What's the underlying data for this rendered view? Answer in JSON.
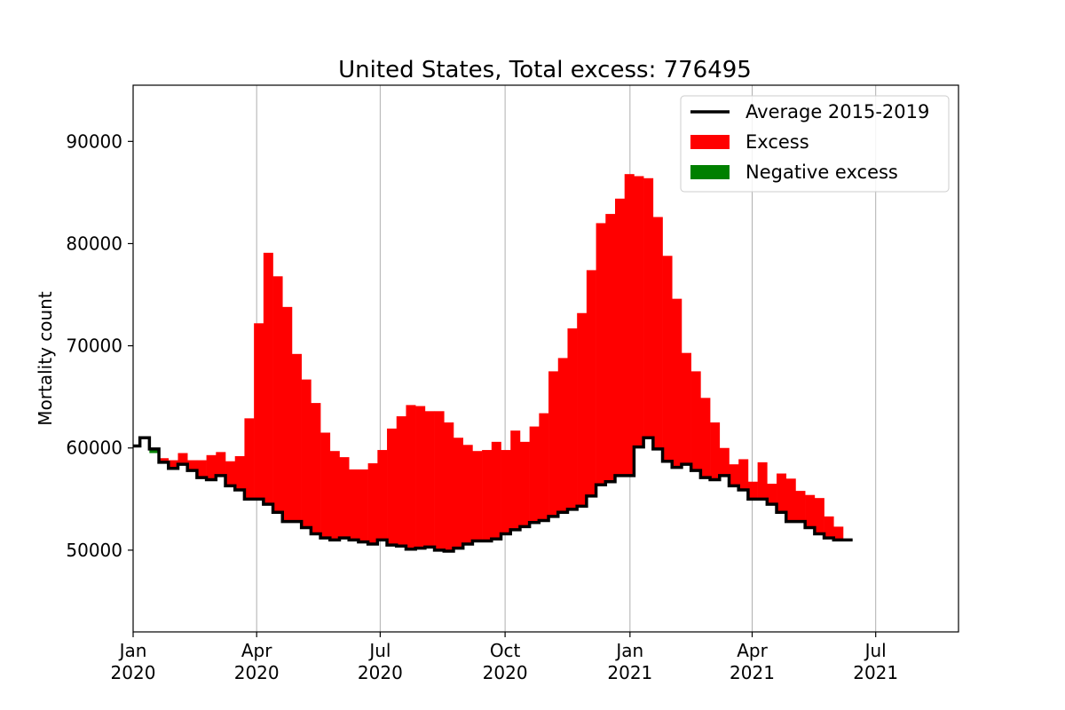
{
  "chart_data": {
    "type": "bar",
    "title": "United States, Total excess: 776495",
    "xlabel": "",
    "ylabel": "Mortality count",
    "ylim": [
      42000,
      95500
    ],
    "xlim": [
      "2020-01-01",
      "2021-08-31"
    ],
    "grid": "x-only",
    "legend_position": "top-right",
    "colors": {
      "average": "#000000",
      "excess": "#ff0000",
      "negative": "#008000",
      "grid": "#b0b0b0"
    },
    "y_ticks": [
      {
        "value": 50000,
        "label": "50000"
      },
      {
        "value": 60000,
        "label": "60000"
      },
      {
        "value": 70000,
        "label": "70000"
      },
      {
        "value": 80000,
        "label": "80000"
      },
      {
        "value": 90000,
        "label": "90000"
      }
    ],
    "x_ticks": [
      {
        "date": "2020-01-01",
        "line1": "Jan",
        "line2": "2020"
      },
      {
        "date": "2020-04-01",
        "line1": "Apr",
        "line2": "2020"
      },
      {
        "date": "2020-07-01",
        "line1": "Jul",
        "line2": "2020"
      },
      {
        "date": "2020-10-01",
        "line1": "Oct",
        "line2": "2020"
      },
      {
        "date": "2021-01-01",
        "line1": "Jan",
        "line2": "2021"
      },
      {
        "date": "2021-04-01",
        "line1": "Apr",
        "line2": "2021"
      },
      {
        "date": "2021-07-01",
        "line1": "Jul",
        "line2": "2021"
      }
    ],
    "legend": [
      {
        "label": "Average 2015-2019",
        "kind": "line"
      },
      {
        "label": "Excess",
        "kind": "patch-red"
      },
      {
        "label": "Negative excess",
        "kind": "patch-green"
      }
    ],
    "series": [
      {
        "name": "Average 2015-2019",
        "week_start": [
          "2019-12-30",
          "2020-01-06",
          "2020-01-13",
          "2020-01-20",
          "2020-01-27",
          "2020-02-03",
          "2020-02-10",
          "2020-02-17",
          "2020-02-24",
          "2020-03-02",
          "2020-03-09",
          "2020-03-16",
          "2020-03-23",
          "2020-03-30",
          "2020-04-06",
          "2020-04-13",
          "2020-04-20",
          "2020-04-27",
          "2020-05-04",
          "2020-05-11",
          "2020-05-18",
          "2020-05-25",
          "2020-06-01",
          "2020-06-08",
          "2020-06-15",
          "2020-06-22",
          "2020-06-29",
          "2020-07-06",
          "2020-07-13",
          "2020-07-20",
          "2020-07-27",
          "2020-08-03",
          "2020-08-10",
          "2020-08-17",
          "2020-08-24",
          "2020-08-31",
          "2020-09-07",
          "2020-09-14",
          "2020-09-21",
          "2020-09-28",
          "2020-10-05",
          "2020-10-12",
          "2020-10-19",
          "2020-10-26",
          "2020-11-02",
          "2020-11-09",
          "2020-11-16",
          "2020-11-23",
          "2020-11-30",
          "2020-12-07",
          "2020-12-14",
          "2020-12-21",
          "2020-12-28",
          "2021-01-04",
          "2021-01-11",
          "2021-01-18",
          "2021-01-25",
          "2021-02-01",
          "2021-02-08",
          "2021-02-15",
          "2021-02-22",
          "2021-03-01",
          "2021-03-08",
          "2021-03-15",
          "2021-03-22",
          "2021-03-29",
          "2021-04-05",
          "2021-04-12",
          "2021-04-19",
          "2021-04-26",
          "2021-05-03",
          "2021-05-10",
          "2021-05-17",
          "2021-05-24",
          "2021-05-31",
          "2021-06-07"
        ],
        "values": [
          60200,
          61000,
          59900,
          58600,
          58000,
          58400,
          57800,
          57100,
          56900,
          57300,
          56300,
          55900,
          55000,
          55000,
          54500,
          53700,
          52800,
          52800,
          52200,
          51600,
          51200,
          51000,
          51200,
          51000,
          50800,
          50600,
          51000,
          50500,
          50400,
          50100,
          50200,
          50300,
          50000,
          49900,
          50200,
          50600,
          50900,
          50900,
          51100,
          51600,
          52000,
          52300,
          52700,
          52900,
          53300,
          53700,
          54000,
          54300,
          55300,
          56400,
          56700,
          57300,
          57300,
          60100,
          61000,
          59900,
          58700,
          58100,
          58400,
          57800,
          57100,
          56900,
          57300,
          56300,
          55900,
          55000,
          55000,
          54500,
          53700,
          52800,
          52800,
          52200,
          51600,
          51200,
          51000,
          51000
        ]
      },
      {
        "name": "Excess",
        "week_start": [
          "2019-12-30",
          "2020-01-06",
          "2020-01-13",
          "2020-01-20",
          "2020-01-27",
          "2020-02-03",
          "2020-02-10",
          "2020-02-17",
          "2020-02-24",
          "2020-03-02",
          "2020-03-09",
          "2020-03-16",
          "2020-03-23",
          "2020-03-30",
          "2020-04-06",
          "2020-04-13",
          "2020-04-20",
          "2020-04-27",
          "2020-05-04",
          "2020-05-11",
          "2020-05-18",
          "2020-05-25",
          "2020-06-01",
          "2020-06-08",
          "2020-06-15",
          "2020-06-22",
          "2020-06-29",
          "2020-07-06",
          "2020-07-13",
          "2020-07-20",
          "2020-07-27",
          "2020-08-03",
          "2020-08-10",
          "2020-08-17",
          "2020-08-24",
          "2020-08-31",
          "2020-09-07",
          "2020-09-14",
          "2020-09-21",
          "2020-09-28",
          "2020-10-05",
          "2020-10-12",
          "2020-10-19",
          "2020-10-26",
          "2020-11-02",
          "2020-11-09",
          "2020-11-16",
          "2020-11-23",
          "2020-11-30",
          "2020-12-07",
          "2020-12-14",
          "2020-12-21",
          "2020-12-28",
          "2021-01-04",
          "2021-01-11",
          "2021-01-18",
          "2021-01-25",
          "2021-02-01",
          "2021-02-08",
          "2021-02-15",
          "2021-02-22",
          "2021-03-01",
          "2021-03-08",
          "2021-03-15",
          "2021-03-22",
          "2021-03-29",
          "2021-04-05",
          "2021-04-12",
          "2021-04-19",
          "2021-04-26",
          "2021-05-03",
          "2021-05-10",
          "2021-05-17",
          "2021-05-24",
          "2021-05-31",
          "2021-06-07"
        ],
        "values": [
          60200,
          61000,
          59500,
          59000,
          58800,
          59500,
          58800,
          58800,
          59300,
          59600,
          58700,
          59200,
          62900,
          72200,
          79100,
          76800,
          73800,
          69200,
          66700,
          64400,
          61500,
          59700,
          59100,
          57900,
          57900,
          58500,
          59800,
          61900,
          63100,
          64200,
          64100,
          63600,
          63600,
          62500,
          61000,
          60300,
          59700,
          59800,
          60600,
          59800,
          61700,
          60600,
          62100,
          63400,
          67500,
          68800,
          71700,
          73200,
          77400,
          82000,
          82900,
          84400,
          86800,
          86600,
          86400,
          82600,
          78800,
          74600,
          69300,
          67500,
          64900,
          62500,
          60000,
          58400,
          58900,
          56700,
          58600,
          56500,
          57500,
          57000,
          55800,
          55400,
          55100,
          53300,
          52300,
          51000
        ]
      },
      {
        "name": "Negative excess",
        "week_start": [
          "2020-01-13"
        ],
        "values": [
          59500
        ]
      }
    ]
  }
}
